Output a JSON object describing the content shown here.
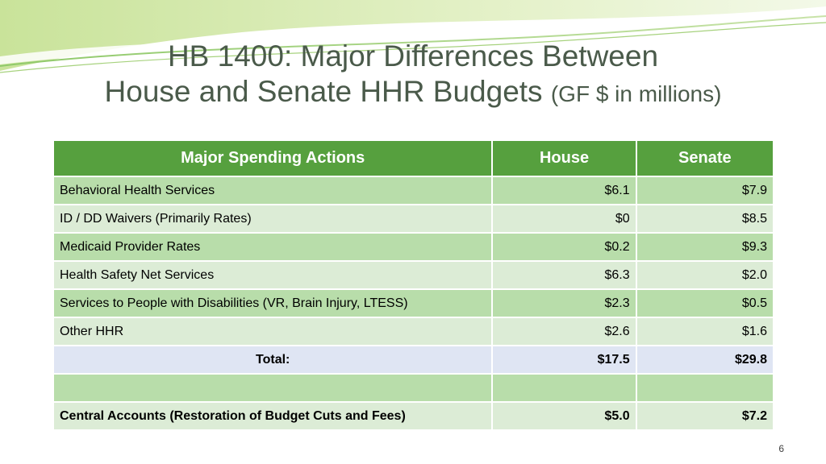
{
  "slide": {
    "title_line1": "HB 1400:  Major Differences Between",
    "title_line2": "House and Senate HHR Budgets",
    "title_subtitle": "(GF $ in millions)",
    "page_number": "6"
  },
  "table": {
    "headers": [
      "Major Spending Actions",
      "House",
      "Senate"
    ],
    "rows": [
      {
        "label": "Behavioral Health Services",
        "house": "$6.1",
        "senate": "$7.9"
      },
      {
        "label": "ID / DD Waivers (Primarily Rates)",
        "house": "$0",
        "senate": "$8.5"
      },
      {
        "label": "Medicaid Provider Rates",
        "house": "$0.2",
        "senate": "$9.3"
      },
      {
        "label": "Health Safety Net Services",
        "house": "$6.3",
        "senate": "$2.0"
      },
      {
        "label": "Services to People with Disabilities (VR, Brain Injury, LTESS)",
        "house": "$2.3",
        "senate": "$0.5"
      },
      {
        "label": "Other HHR",
        "house": "$2.6",
        "senate": "$1.6"
      }
    ],
    "total": {
      "label": "Total:",
      "house": "$17.5",
      "senate": "$29.8"
    },
    "central": {
      "label": "Central Accounts (Restoration of Budget Cuts and Fees)",
      "house": "$5.0",
      "senate": "$7.2"
    }
  },
  "colors": {
    "header_green": "#56a03e",
    "row_dark": "#b8ddaa",
    "row_light": "#dcecd6",
    "total_row": "#dfe5f3",
    "title_text": "#4a5a4a"
  }
}
